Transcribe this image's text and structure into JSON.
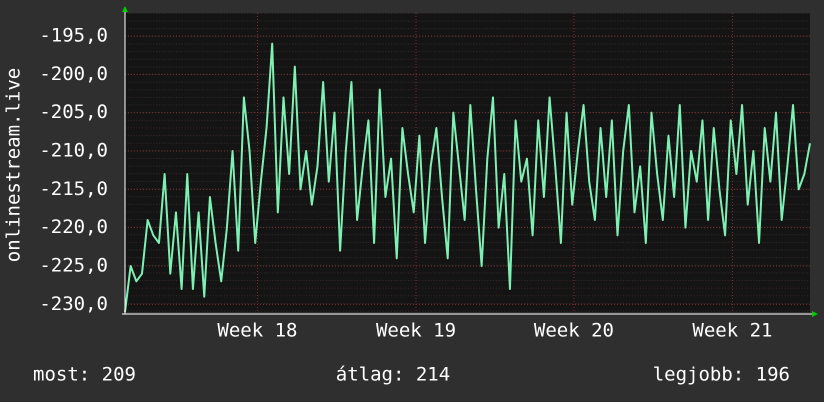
{
  "chart_data": {
    "type": "line",
    "ylabel": "onlinestream.live",
    "values": [
      -231,
      -225,
      -227,
      -226,
      -219,
      -221,
      -222,
      -213,
      -226,
      -218,
      -228,
      -213,
      -228,
      -218,
      -229,
      -216,
      -222,
      -227,
      -220,
      -210,
      -223,
      -203,
      -210,
      -222,
      -214,
      -207,
      -196,
      -218,
      -203,
      -213,
      -199,
      -215,
      -210,
      -217,
      -212,
      -201,
      -214,
      -205,
      -223,
      -210,
      -201,
      -219,
      -212,
      -206,
      -222,
      -202,
      -216,
      -211,
      -224,
      -207,
      -213,
      -218,
      -208,
      -222,
      -212,
      -207,
      -216,
      -224,
      -205,
      -212,
      -219,
      -204,
      -215,
      -225,
      -211,
      -203,
      -220,
      -213,
      -228,
      -206,
      -214,
      -211,
      -221,
      -206,
      -216,
      -203,
      -212,
      -222,
      -205,
      -217,
      -210,
      -204,
      -214,
      -219,
      -207,
      -216,
      -206,
      -221,
      -210,
      -204,
      -218,
      -212,
      -222,
      -205,
      -213,
      -219,
      -208,
      -216,
      -204,
      -220,
      -210,
      -214,
      -206,
      -219,
      -207,
      -215,
      -221,
      -206,
      -213,
      -204,
      -217,
      -210,
      -222,
      -207,
      -214,
      -205,
      -219,
      -212,
      -204,
      -215,
      -213,
      -209
    ],
    "color": "#7ff0b4",
    "xlim": [
      0,
      121
    ],
    "xticks": [
      {
        "value": 23.4,
        "label": "Week 18"
      },
      {
        "value": 51.4,
        "label": "Week 19"
      },
      {
        "value": 79.3,
        "label": "Week 20"
      },
      {
        "value": 107.3,
        "label": "Week 21"
      }
    ],
    "ylim": [
      -231,
      -192
    ],
    "yticks": [
      {
        "value": -230,
        "label": "-230,0"
      },
      {
        "value": -225,
        "label": "-225,0"
      },
      {
        "value": -220,
        "label": "-220,0"
      },
      {
        "value": -215,
        "label": "-215,0"
      },
      {
        "value": -210,
        "label": "-210,0"
      },
      {
        "value": -205,
        "label": "-205,0"
      },
      {
        "value": -200,
        "label": "-200,0"
      },
      {
        "value": -195,
        "label": "-195,0"
      }
    ],
    "grid": true,
    "annotations": [
      "most: 209",
      "átlag: 214",
      "legjobb: 196"
    ]
  }
}
